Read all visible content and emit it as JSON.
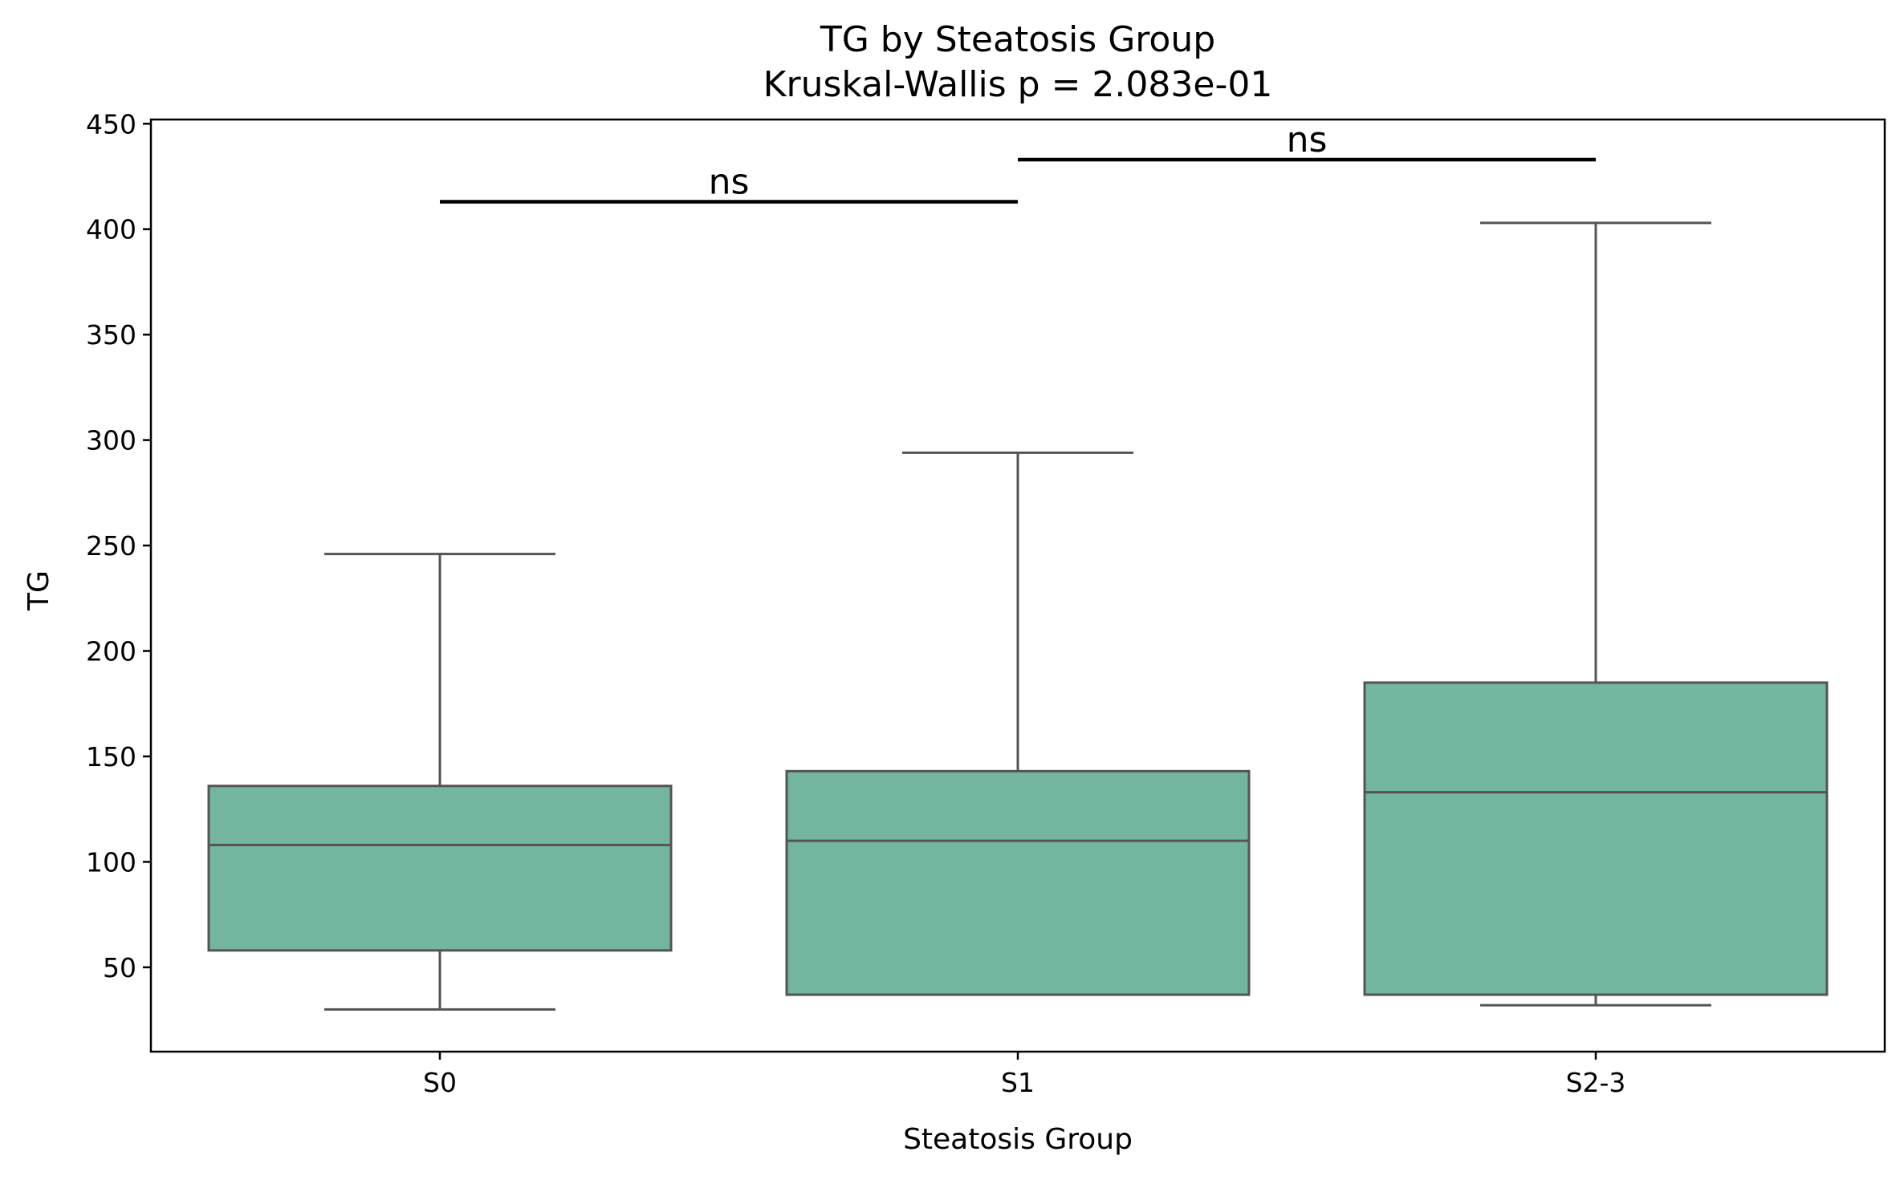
{
  "chart_data": {
    "type": "box",
    "title": "TG by Steatosis Group",
    "subtitle": "Kruskal-Wallis p = 2.083e-01",
    "xlabel": "Steatosis Group",
    "ylabel": "TG",
    "ylim": [
      10,
      452
    ],
    "yticks": [
      50,
      100,
      150,
      200,
      250,
      300,
      350,
      400,
      450
    ],
    "grid": false,
    "colors": {
      "box_fill": "#73b59f",
      "box_edge": "#545454",
      "axis": "#000000"
    },
    "categories": [
      "S0",
      "S1",
      "S2-3"
    ],
    "boxes": [
      {
        "category": "S0",
        "whisker_low": 30,
        "q1": 58,
        "median": 108,
        "q3": 136,
        "whisker_high": 246
      },
      {
        "category": "S1",
        "whisker_low": 37,
        "q1": 37,
        "median": 110,
        "q3": 143,
        "whisker_high": 294
      },
      {
        "category": "S2-3",
        "whisker_low": 32,
        "q1": 37,
        "median": 133,
        "q3": 185,
        "whisker_high": 403
      }
    ],
    "annotations": [
      {
        "from": "S0",
        "to": "S1",
        "y": 413,
        "label": "ns"
      },
      {
        "from": "S1",
        "to": "S2-3",
        "y": 433,
        "label": "ns"
      }
    ]
  }
}
